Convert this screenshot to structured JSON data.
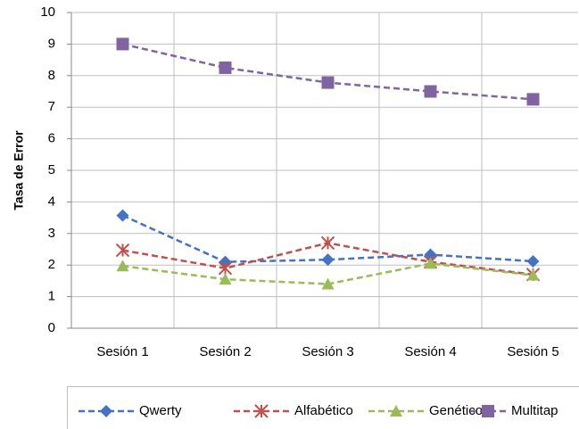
{
  "chart_data": {
    "type": "line",
    "y_label": "Tasa de Error",
    "categories": [
      "Sesión 1",
      "Sesión 2",
      "Sesión 3",
      "Sesión 4",
      "Sesión 5"
    ],
    "series": [
      {
        "name": "Qwerty",
        "color": "#4472c4",
        "marker": "diamond",
        "values": [
          3.57,
          2.1,
          2.17,
          2.33,
          2.12
        ]
      },
      {
        "name": "Alfabético",
        "color": "#c0504d",
        "marker": "star",
        "values": [
          2.47,
          1.9,
          2.7,
          2.1,
          1.7
        ]
      },
      {
        "name": "Genético",
        "color": "#9bbb59",
        "marker": "triangle",
        "values": [
          1.97,
          1.55,
          1.4,
          2.05,
          1.68
        ]
      },
      {
        "name": "Multitap",
        "color": "#8064a2",
        "marker": "square",
        "values": [
          9.0,
          8.25,
          7.78,
          7.5,
          7.25
        ]
      }
    ],
    "ylim": [
      0,
      10
    ],
    "yticks": [
      0,
      1,
      2,
      3,
      4,
      5,
      6,
      7,
      8,
      9,
      10
    ],
    "grid": true,
    "legend": "bottom"
  }
}
